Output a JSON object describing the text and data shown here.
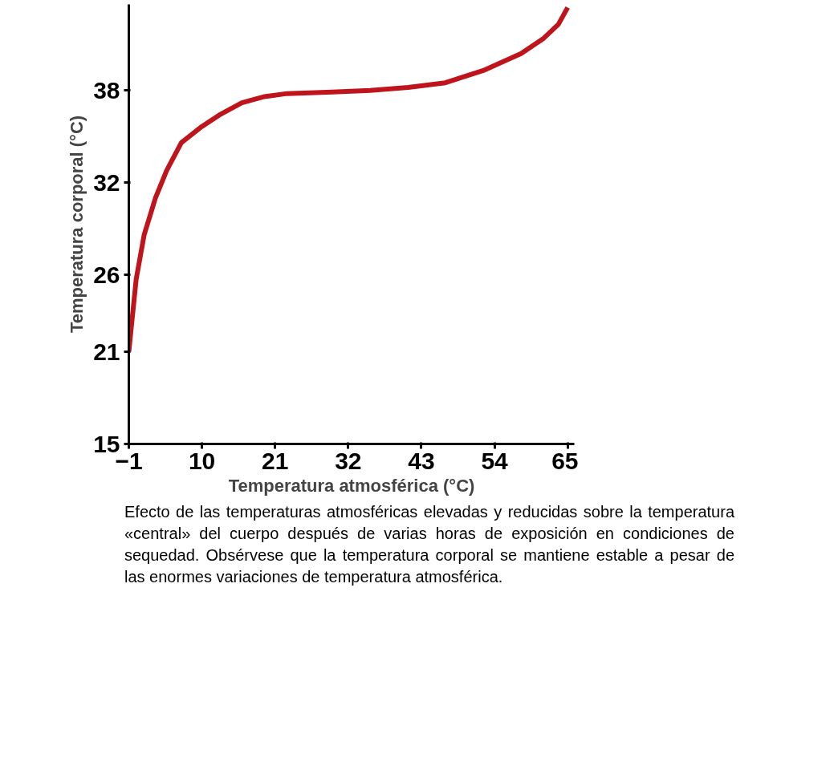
{
  "chart_data": {
    "type": "line",
    "xlabel": "Temperatura atmosférica (°C)",
    "ylabel": "Temperatura corporal (°C)",
    "annotations": [
      "Efecto de las temperaturas atmosféricas elevadas y reducidas sobre la temperatura «central» del cuerpo después de varias horas de exposición en condiciones de sequedad. Obsérvese que la temperatura corporal se mantiene estable a pesar de las enormes variaciones de temperatura atmosférica."
    ],
    "x": [
      -1,
      0.1,
      1.3,
      3,
      4.7,
      6.9,
      9.8,
      12.6,
      16,
      19.4,
      22.8,
      29.6,
      35.3,
      41,
      46.6,
      52.3,
      58,
      61.4,
      63.6,
      65
    ],
    "series": [
      {
        "color": "#c0141c",
        "values": [
          21,
          25.7,
          28.6,
          31,
          32.8,
          34.6,
          35.6,
          36.4,
          37.2,
          37.6,
          37.8,
          37.9,
          38,
          38.2,
          38.5,
          39.3,
          40.4,
          41.4,
          42.3,
          43.4
        ]
      }
    ],
    "xlim": [
      -1,
      66
    ],
    "ylim": [
      15,
      43.6
    ],
    "xticks": [
      -1,
      10,
      21,
      32,
      43,
      54,
      65
    ],
    "yticks": [
      15,
      21,
      26,
      32,
      38
    ],
    "grid": false,
    "marker": "none",
    "line_style": "solid"
  }
}
